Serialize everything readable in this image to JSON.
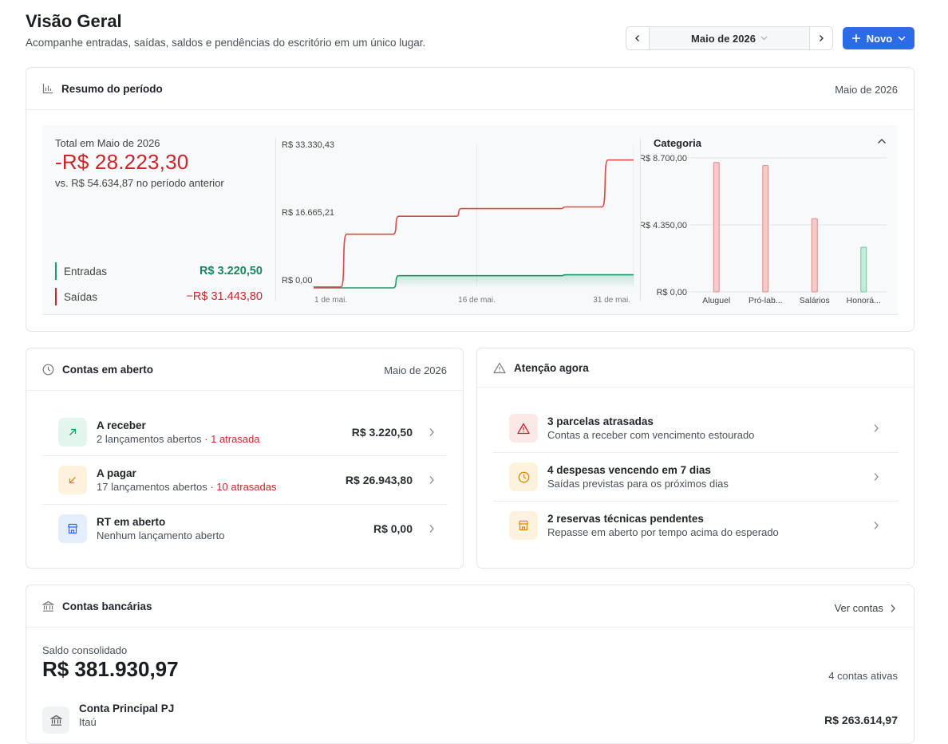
{
  "header": {
    "title": "Visão Geral",
    "subtitle": "Acompanhe entradas, saídas, saldos e pendências do escritório em um único lugar.",
    "period_label": "Maio de 2026",
    "prev_icon": "chevron-left-icon",
    "next_icon": "chevron-right-icon",
    "new_button_label": "Novo"
  },
  "summary": {
    "title": "Resumo do período",
    "period": "Maio de 2026",
    "total_label": "Total em Maio de 2026",
    "total_value": "-R$ 28.223,30",
    "previous_text": "vs. R$ 54.634,87 no período anterior",
    "entradas_label": "Entradas",
    "entradas_value": "R$ 3.220,50",
    "saidas_label": "Saídas",
    "saidas_value": "−R$ 31.443,80",
    "category_title": "Categoria"
  },
  "chart_data": [
    {
      "type": "line",
      "y_tick_labels": [
        "R$ 33.330,43",
        "R$ 16.665,21",
        "R$ 0,00"
      ],
      "x_tick_labels": [
        "1 de mai.",
        "16 de mai.",
        "31 de mai."
      ],
      "ylim": [
        0,
        33330.43
      ],
      "xlim": [
        1,
        31
      ],
      "colors": {
        "entradas": "#1e9a6a",
        "saidas": "#e04848"
      },
      "series": [
        {
          "name": "Saídas",
          "x": [
            1,
            2,
            3,
            4,
            5,
            6,
            7,
            8,
            9,
            10,
            11,
            12,
            13,
            14,
            15,
            16,
            17,
            18,
            19,
            20,
            21,
            22,
            23,
            24,
            25,
            26,
            27,
            28,
            29,
            30,
            31
          ],
          "y": [
            200,
            200,
            200,
            13200,
            13200,
            13200,
            13200,
            13200,
            17600,
            17600,
            17600,
            17600,
            17600,
            17600,
            19500,
            19500,
            19500,
            19500,
            19500,
            19500,
            19500,
            19500,
            19500,
            19500,
            19900,
            19900,
            19900,
            19900,
            31443.8,
            31443.8,
            31443.8
          ]
        },
        {
          "name": "Entradas",
          "x": [
            1,
            2,
            3,
            4,
            5,
            6,
            7,
            8,
            9,
            10,
            11,
            12,
            13,
            14,
            15,
            16,
            17,
            18,
            19,
            20,
            21,
            22,
            23,
            24,
            25,
            26,
            27,
            28,
            29,
            30,
            31
          ],
          "y": [
            0,
            0,
            0,
            0,
            0,
            0,
            0,
            0,
            3000,
            3000,
            3000,
            3000,
            3000,
            3000,
            3000,
            3000,
            3000,
            3000,
            3000,
            3000,
            3000,
            3000,
            3000,
            3000,
            3220.5,
            3220.5,
            3220.5,
            3220.5,
            3220.5,
            3220.5,
            3220.5
          ]
        }
      ]
    },
    {
      "type": "bar",
      "title": "Categoria",
      "categories": [
        "Aluguel",
        "Pró-lab...",
        "Salários",
        "Honorá..."
      ],
      "y_tick_labels": [
        "R$ 8.700,00",
        "R$ 4.350,00",
        "R$ 0,00"
      ],
      "ylim": [
        0,
        8700
      ],
      "values": [
        8400,
        8200,
        4750,
        2900
      ],
      "bar_kinds": [
        "saida",
        "saida",
        "saida",
        "entrada"
      ],
      "colors": {
        "saida_fill": "#f8c9c9",
        "saida_stroke": "#e08a8a",
        "entrada_fill": "#c4ecd9",
        "entrada_stroke": "#6fc79f"
      }
    }
  ],
  "open_accounts": {
    "title": "Contas em aberto",
    "period": "Maio de 2026",
    "items": [
      {
        "title": "A receber",
        "detail": "2 lançamentos abertos",
        "late": "· 1 atrasada",
        "amount": "R$ 3.220,50",
        "icon": "arrow-up-right-icon"
      },
      {
        "title": "A pagar",
        "detail": "17 lançamentos abertos",
        "late": "· 10 atrasadas",
        "amount": "R$ 26.943,80",
        "icon": "arrow-down-left-icon"
      },
      {
        "title": "RT em aberto",
        "detail": "Nenhum lançamento aberto",
        "late": "",
        "amount": "R$ 0,00",
        "icon": "store-icon"
      }
    ]
  },
  "attention": {
    "title": "Atenção agora",
    "items": [
      {
        "title": "3 parcelas atrasadas",
        "detail": "Contas a receber com vencimento estourado",
        "icon": "warning-icon"
      },
      {
        "title": "4 despesas vencendo em 7 dias",
        "detail": "Saídas previstas para os próximos dias",
        "icon": "clock-icon"
      },
      {
        "title": "2 reservas técnicas pendentes",
        "detail": "Repasse em aberto por tempo acima do esperado",
        "icon": "store-icon"
      }
    ]
  },
  "bank": {
    "title": "Contas bancárias",
    "link_label": "Ver contas",
    "balance_label": "Saldo consolidado",
    "balance_value": "R$ 381.930,97",
    "active_count": "4 contas ativas",
    "accounts": [
      {
        "name": "Conta Principal PJ",
        "bank": "Itaú",
        "amount": "R$ 263.614,97",
        "icon": "bank-icon"
      }
    ]
  }
}
